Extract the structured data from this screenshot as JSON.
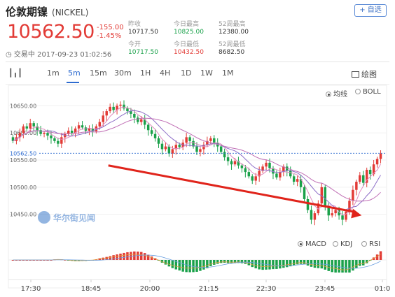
{
  "header": {
    "name": "伦敦期镍",
    "code": "(NICKEL)",
    "add_button": "+ 自选",
    "price": "10562.50",
    "change": "-155.00",
    "change_pct": "-1.45%",
    "status": "交易中 2017-09-23 01:02:56"
  },
  "stats": {
    "prev_close_label": "昨收",
    "prev_close": "10717.50",
    "open_label": "今开",
    "open": "10717.50",
    "high_label": "今日最高",
    "high": "10825.00",
    "low_label": "今日最低",
    "low": "10432.50",
    "w52_high_label": "52周最高",
    "w52_high": "12380.00",
    "w52_low_label": "52周最低",
    "w52_low": "8682.50"
  },
  "toolbar": {
    "tabs": [
      "1m",
      "5m",
      "15m",
      "30m",
      "1H",
      "4H",
      "1D",
      "1W",
      "1M"
    ],
    "active_tab": "5m",
    "draw_label": "绘图"
  },
  "overlay_options": {
    "ma": "均线",
    "boll": "BOLL"
  },
  "indicator_options": {
    "macd": "MACD",
    "kdj": "KDJ",
    "rsi": "RSI"
  },
  "watermark": "华尔街见闻",
  "colors": {
    "up": "#e23b36",
    "down": "#1aa14a",
    "accent": "#2d6bd0",
    "arrow": "#e0241b"
  },
  "chart_data": {
    "type": "candlestick",
    "y_ticks": [
      "10650.00",
      "10600.00",
      "10550.00",
      "10500.00",
      "10450.00"
    ],
    "current_price_label": "10562.50",
    "x_ticks": [
      "17:30",
      "18:45",
      "20:00",
      "21:15",
      "22:30",
      "23:45",
      "01:0"
    ],
    "ylim": [
      10420,
      10680
    ],
    "close": [
      10585,
      10592,
      10600,
      10612,
      10608,
      10618,
      10612,
      10605,
      10598,
      10600,
      10595,
      10590,
      10585,
      10580,
      10592,
      10598,
      10604,
      10600,
      10608,
      10614,
      10610,
      10604,
      10608,
      10603,
      10612,
      10620,
      10632,
      10640,
      10648,
      10642,
      10650,
      10652,
      10645,
      10640,
      10635,
      10628,
      10620,
      10625,
      10615,
      10605,
      10598,
      10590,
      10580,
      10570,
      10575,
      10562,
      10570,
      10578,
      10574,
      10582,
      10592,
      10585,
      10575,
      10565,
      10570,
      10578,
      10585,
      10590,
      10582,
      10575,
      10565,
      10555,
      10548,
      10542,
      10548,
      10540,
      10535,
      10528,
      10520,
      10512,
      10520,
      10530,
      10538,
      10545,
      10535,
      10525,
      10518,
      10528,
      10538,
      10530,
      10520,
      10510,
      10515,
      10500,
      10478,
      10458,
      10440,
      10452,
      10470,
      10500,
      10465,
      10448,
      10452,
      10458,
      10448,
      10440,
      10455,
      10475,
      10495,
      10510,
      10522,
      10508,
      10532,
      10524,
      10542,
      10552,
      10562
    ]
  },
  "arrow": {
    "from": [
      10540,
      28
    ],
    "to": [
      10448,
      101
    ]
  }
}
